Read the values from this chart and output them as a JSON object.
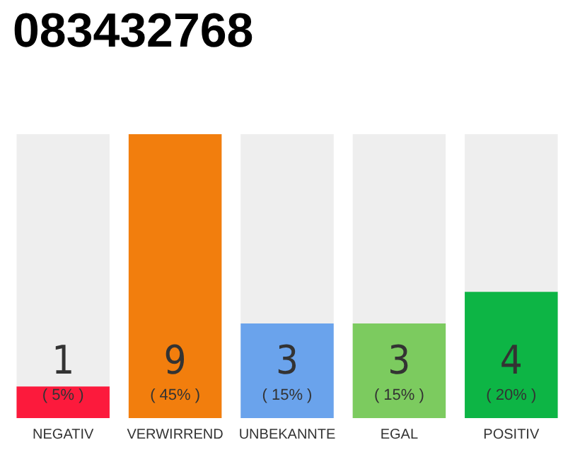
{
  "chart_data": {
    "type": "bar",
    "title": "083432768",
    "categories": [
      "NEGATIV",
      "VERWIRREND",
      "UNBEKANNTE",
      "EGAL",
      "POSITIV"
    ],
    "values": [
      1,
      9,
      3,
      3,
      4
    ],
    "colors": [
      "#fc1a3c",
      "#f27e0d",
      "#6aa3ec",
      "#7ccb5f",
      "#0db545"
    ],
    "data_labels": true,
    "annotations": [
      "( 5% )",
      "( 45% )",
      "( 15% )",
      "( 15% )",
      "( 20% )"
    ]
  }
}
